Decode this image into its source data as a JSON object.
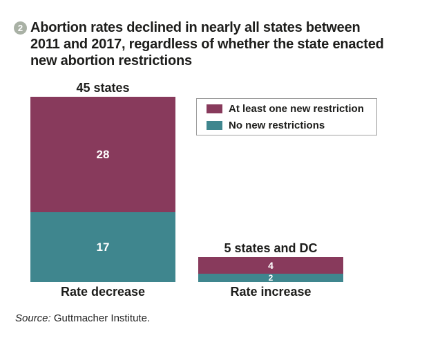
{
  "header": {
    "badge_number": "2",
    "title_lines": [
      "Abortion rates declined in nearly all states between",
      "2011 and 2017, regardless of whether the state enacted",
      "new abortion restrictions"
    ]
  },
  "chart_data": {
    "type": "bar",
    "stacked": true,
    "orientation": "vertical",
    "categories": [
      "Rate decrease",
      "Rate increase"
    ],
    "category_totals": [
      "45 states",
      "5 states and DC"
    ],
    "series": [
      {
        "name": "At least one new restriction",
        "color": "#883a5c",
        "values": [
          28,
          4
        ]
      },
      {
        "name": "No new restrictions",
        "color": "#3f868e",
        "values": [
          17,
          2
        ]
      }
    ],
    "value_labels": true,
    "value_label_color": "#ffffff",
    "legend_position": "top-right",
    "axes": "none",
    "grid": false
  },
  "source": {
    "label": "Source:",
    "text": " Guttmacher Institute."
  },
  "colors": {
    "restriction_maroon": "#883a5c",
    "no_restriction_teal": "#3f868e",
    "badge_gray_green": "#a9b1a5",
    "text_dark": "#1d1d1b",
    "legend_border": "#9e9e9e",
    "background": "#ffffff"
  }
}
